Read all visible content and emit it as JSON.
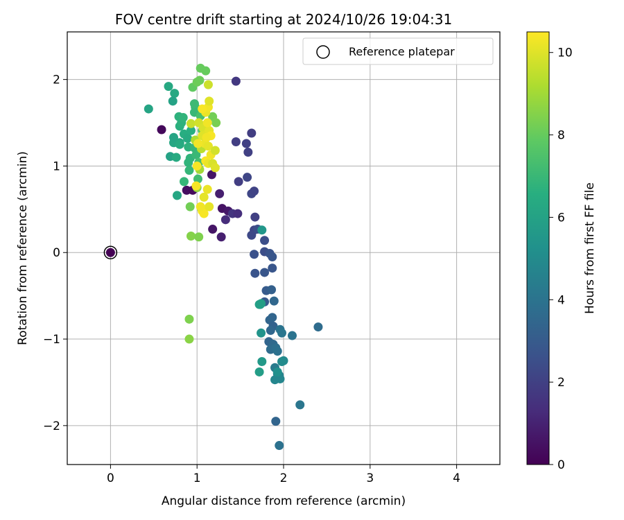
{
  "chart_data": {
    "type": "scatter",
    "title": "FOV centre drift starting at 2024/10/26 19:04:31",
    "xlabel": "Angular distance from reference (arcmin)",
    "ylabel": "Rotation from reference (arcmin)",
    "xlim": [
      -0.5,
      4.5
    ],
    "ylim": [
      -2.45,
      2.55
    ],
    "xticks": [
      0,
      1,
      2,
      3,
      4
    ],
    "yticks": [
      -2,
      -1,
      0,
      1,
      2
    ],
    "grid": true,
    "legend": {
      "placement": "top-right",
      "entries": [
        "Reference platepar"
      ]
    },
    "reference_point": {
      "x": 0,
      "y": 0,
      "name": "Reference platepar"
    },
    "colorbar": {
      "label": "Hours from first FF file",
      "colormap": "viridis",
      "range": [
        0,
        10.5
      ],
      "ticks": [
        0,
        2,
        4,
        6,
        8,
        10
      ]
    },
    "points": [
      {
        "x": 0.59,
        "y": 1.42,
        "h": 0.2
      },
      {
        "x": 0.88,
        "y": 0.72,
        "h": 0.4
      },
      {
        "x": 0.95,
        "y": 0.72,
        "h": 0.3
      },
      {
        "x": 1.17,
        "y": 0.9,
        "h": 0.6
      },
      {
        "x": 1.26,
        "y": 0.68,
        "h": 0.9
      },
      {
        "x": 1.29,
        "y": 0.51,
        "h": 0.5
      },
      {
        "x": 1.36,
        "y": 0.48,
        "h": 0.7
      },
      {
        "x": 1.18,
        "y": 0.27,
        "h": 0.6
      },
      {
        "x": 1.28,
        "y": 0.18,
        "h": 0.9
      },
      {
        "x": 1.33,
        "y": 0.38,
        "h": 1.3
      },
      {
        "x": 1.41,
        "y": 0.45,
        "h": 1.6
      },
      {
        "x": 1.47,
        "y": 0.45,
        "h": 1.4
      },
      {
        "x": 1.45,
        "y": 1.98,
        "h": 1.7
      },
      {
        "x": 1.45,
        "y": 1.28,
        "h": 1.9
      },
      {
        "x": 1.57,
        "y": 1.26,
        "h": 2.0
      },
      {
        "x": 1.59,
        "y": 1.16,
        "h": 2.0
      },
      {
        "x": 1.63,
        "y": 1.38,
        "h": 1.9
      },
      {
        "x": 1.48,
        "y": 0.82,
        "h": 1.9
      },
      {
        "x": 1.58,
        "y": 0.87,
        "h": 2.2
      },
      {
        "x": 1.63,
        "y": 0.68,
        "h": 2.2
      },
      {
        "x": 1.66,
        "y": 0.71,
        "h": 2.1
      },
      {
        "x": 1.67,
        "y": 0.41,
        "h": 2.0
      },
      {
        "x": 1.66,
        "y": 0.26,
        "h": 2.2
      },
      {
        "x": 1.63,
        "y": 0.2,
        "h": 2.3
      },
      {
        "x": 1.7,
        "y": 0.27,
        "h": 2.5
      },
      {
        "x": 1.78,
        "y": 0.14,
        "h": 2.5
      },
      {
        "x": 1.66,
        "y": -0.02,
        "h": 2.6
      },
      {
        "x": 1.78,
        "y": 0.01,
        "h": 2.5
      },
      {
        "x": 1.84,
        "y": -0.01,
        "h": 2.7
      },
      {
        "x": 1.87,
        "y": -0.05,
        "h": 2.8
      },
      {
        "x": 1.67,
        "y": -0.24,
        "h": 2.7
      },
      {
        "x": 1.78,
        "y": -0.23,
        "h": 2.8
      },
      {
        "x": 1.87,
        "y": -0.18,
        "h": 2.8
      },
      {
        "x": 1.8,
        "y": -0.44,
        "h": 3.0
      },
      {
        "x": 1.86,
        "y": -0.43,
        "h": 3.2
      },
      {
        "x": 1.78,
        "y": -0.57,
        "h": 3.0
      },
      {
        "x": 1.89,
        "y": -0.56,
        "h": 3.5
      },
      {
        "x": 1.84,
        "y": -0.78,
        "h": 3.4
      },
      {
        "x": 1.87,
        "y": -0.75,
        "h": 3.4
      },
      {
        "x": 1.88,
        "y": -0.85,
        "h": 3.3
      },
      {
        "x": 1.85,
        "y": -0.9,
        "h": 3.5
      },
      {
        "x": 1.83,
        "y": -1.03,
        "h": 3.4
      },
      {
        "x": 1.88,
        "y": -1.06,
        "h": 3.6
      },
      {
        "x": 1.85,
        "y": -1.12,
        "h": 3.7
      },
      {
        "x": 1.91,
        "y": -1.1,
        "h": 3.8
      },
      {
        "x": 1.93,
        "y": -1.14,
        "h": 3.9
      },
      {
        "x": 1.96,
        "y": -0.89,
        "h": 4.0
      },
      {
        "x": 1.98,
        "y": -0.93,
        "h": 4.1
      },
      {
        "x": 2.1,
        "y": -0.96,
        "h": 4.0
      },
      {
        "x": 2.4,
        "y": -0.86,
        "h": 3.7
      },
      {
        "x": 1.91,
        "y": -1.95,
        "h": 3.4
      },
      {
        "x": 1.95,
        "y": -2.23,
        "h": 3.9
      },
      {
        "x": 2.19,
        "y": -1.76,
        "h": 4.1
      },
      {
        "x": 1.9,
        "y": -1.33,
        "h": 4.3
      },
      {
        "x": 1.93,
        "y": -1.4,
        "h": 4.4
      },
      {
        "x": 1.95,
        "y": -1.42,
        "h": 4.6
      },
      {
        "x": 1.9,
        "y": -1.47,
        "h": 4.8
      },
      {
        "x": 1.96,
        "y": -1.46,
        "h": 4.8
      },
      {
        "x": 2.0,
        "y": -1.25,
        "h": 4.9
      },
      {
        "x": 1.98,
        "y": -1.26,
        "h": 5.0
      },
      {
        "x": 1.93,
        "y": -1.38,
        "h": 5.2
      },
      {
        "x": 1.73,
        "y": -0.6,
        "h": 5.3
      },
      {
        "x": 1.74,
        "y": -0.93,
        "h": 5.4
      },
      {
        "x": 1.75,
        "y": -1.26,
        "h": 5.6
      },
      {
        "x": 1.72,
        "y": -1.38,
        "h": 5.8
      },
      {
        "x": 1.72,
        "y": -0.6,
        "h": 5.9
      },
      {
        "x": 1.75,
        "y": 0.26,
        "h": 5.5
      },
      {
        "x": 1.74,
        "y": -0.59,
        "h": 5.9
      },
      {
        "x": 0.44,
        "y": 1.66,
        "h": 6.1
      },
      {
        "x": 0.67,
        "y": 1.92,
        "h": 6.3
      },
      {
        "x": 0.74,
        "y": 1.84,
        "h": 6.3
      },
      {
        "x": 0.72,
        "y": 1.75,
        "h": 6.0
      },
      {
        "x": 0.69,
        "y": 1.11,
        "h": 6.0
      },
      {
        "x": 0.76,
        "y": 1.1,
        "h": 6.4
      },
      {
        "x": 0.73,
        "y": 1.27,
        "h": 6.2
      },
      {
        "x": 0.73,
        "y": 1.33,
        "h": 6.1
      },
      {
        "x": 0.8,
        "y": 1.27,
        "h": 6.2
      },
      {
        "x": 0.8,
        "y": 1.25,
        "h": 6.4
      },
      {
        "x": 0.85,
        "y": 1.37,
        "h": 6.5
      },
      {
        "x": 0.8,
        "y": 1.46,
        "h": 6.6
      },
      {
        "x": 0.82,
        "y": 1.5,
        "h": 6.7
      },
      {
        "x": 0.79,
        "y": 1.57,
        "h": 6.7
      },
      {
        "x": 0.84,
        "y": 1.56,
        "h": 6.8
      },
      {
        "x": 0.89,
        "y": 1.32,
        "h": 6.4
      },
      {
        "x": 0.93,
        "y": 1.41,
        "h": 6.5
      },
      {
        "x": 0.9,
        "y": 1.22,
        "h": 6.7
      },
      {
        "x": 0.9,
        "y": 1.04,
        "h": 6.8
      },
      {
        "x": 0.91,
        "y": 0.95,
        "h": 6.9
      },
      {
        "x": 0.92,
        "y": 1.09,
        "h": 6.8
      },
      {
        "x": 0.97,
        "y": 1.21,
        "h": 6.9
      },
      {
        "x": 0.99,
        "y": 1.13,
        "h": 7.0
      },
      {
        "x": 0.98,
        "y": 1.68,
        "h": 7.1
      },
      {
        "x": 0.97,
        "y": 1.62,
        "h": 7.0
      },
      {
        "x": 0.97,
        "y": 1.72,
        "h": 7.1
      },
      {
        "x": 0.85,
        "y": 0.82,
        "h": 6.9
      },
      {
        "x": 0.77,
        "y": 0.66,
        "h": 6.2
      },
      {
        "x": 1.01,
        "y": 0.85,
        "h": 7.2
      },
      {
        "x": 1.02,
        "y": 1.04,
        "h": 7.3
      },
      {
        "x": 1.04,
        "y": 1.58,
        "h": 7.4
      },
      {
        "x": 1.06,
        "y": 1.41,
        "h": 7.5
      },
      {
        "x": 1.09,
        "y": 1.46,
        "h": 7.6
      },
      {
        "x": 0.95,
        "y": 1.91,
        "h": 7.9
      },
      {
        "x": 1.0,
        "y": 1.97,
        "h": 8.1
      },
      {
        "x": 1.03,
        "y": 1.99,
        "h": 8.1
      },
      {
        "x": 1.04,
        "y": 2.13,
        "h": 8.0
      },
      {
        "x": 1.1,
        "y": 2.1,
        "h": 8.0
      },
      {
        "x": 1.08,
        "y": 1.65,
        "h": 8.2
      },
      {
        "x": 1.18,
        "y": 1.57,
        "h": 8.2
      },
      {
        "x": 1.22,
        "y": 1.5,
        "h": 8.3
      },
      {
        "x": 0.92,
        "y": 0.53,
        "h": 8.2
      },
      {
        "x": 0.93,
        "y": 0.19,
        "h": 8.5
      },
      {
        "x": 1.02,
        "y": 0.18,
        "h": 8.4
      },
      {
        "x": 0.91,
        "y": -0.77,
        "h": 8.4
      },
      {
        "x": 0.91,
        "y": -1.0,
        "h": 8.6
      },
      {
        "x": 1.05,
        "y": 0.51,
        "h": 8.7
      },
      {
        "x": 1.0,
        "y": 0.75,
        "h": 8.8
      },
      {
        "x": 1.03,
        "y": 0.96,
        "h": 9.0
      },
      {
        "x": 0.98,
        "y": 1.3,
        "h": 9.2
      },
      {
        "x": 1.05,
        "y": 1.2,
        "h": 9.4
      },
      {
        "x": 0.93,
        "y": 1.49,
        "h": 9.6
      },
      {
        "x": 1.02,
        "y": 1.5,
        "h": 9.8
      },
      {
        "x": 1.07,
        "y": 1.44,
        "h": 9.9
      },
      {
        "x": 1.1,
        "y": 1.36,
        "h": 10.0
      },
      {
        "x": 1.14,
        "y": 1.41,
        "h": 10.1
      },
      {
        "x": 1.12,
        "y": 1.5,
        "h": 10.3
      },
      {
        "x": 1.1,
        "y": 1.62,
        "h": 10.2
      },
      {
        "x": 1.13,
        "y": 1.68,
        "h": 10.3
      },
      {
        "x": 1.14,
        "y": 1.75,
        "h": 10.0
      },
      {
        "x": 1.13,
        "y": 1.94,
        "h": 9.7
      },
      {
        "x": 1.06,
        "y": 1.66,
        "h": 10.4
      },
      {
        "x": 1.09,
        "y": 1.26,
        "h": 10.2
      },
      {
        "x": 1.13,
        "y": 1.23,
        "h": 10.1
      },
      {
        "x": 1.16,
        "y": 1.13,
        "h": 10.3
      },
      {
        "x": 1.1,
        "y": 1.06,
        "h": 10.4
      },
      {
        "x": 1.13,
        "y": 1.03,
        "h": 10.2
      },
      {
        "x": 1.18,
        "y": 1.03,
        "h": 9.9
      },
      {
        "x": 1.21,
        "y": 0.98,
        "h": 10.0
      },
      {
        "x": 1.21,
        "y": 1.18,
        "h": 9.8
      },
      {
        "x": 1.0,
        "y": 1.0,
        "h": 10.4
      },
      {
        "x": 1.01,
        "y": 1.26,
        "h": 10.3
      },
      {
        "x": 1.06,
        "y": 1.35,
        "h": 10.0
      },
      {
        "x": 1.08,
        "y": 0.64,
        "h": 10.1
      },
      {
        "x": 1.12,
        "y": 0.73,
        "h": 10.2
      },
      {
        "x": 1.06,
        "y": 0.48,
        "h": 10.3
      },
      {
        "x": 1.08,
        "y": 0.45,
        "h": 10.4
      },
      {
        "x": 1.14,
        "y": 0.53,
        "h": 10.1
      },
      {
        "x": 1.04,
        "y": 0.53,
        "h": 10.3
      },
      {
        "x": 0.99,
        "y": 0.77,
        "h": 10.4
      },
      {
        "x": 1.16,
        "y": 1.35,
        "h": 10.4
      },
      {
        "x": 1.11,
        "y": 1.33,
        "h": 10.3
      }
    ]
  }
}
